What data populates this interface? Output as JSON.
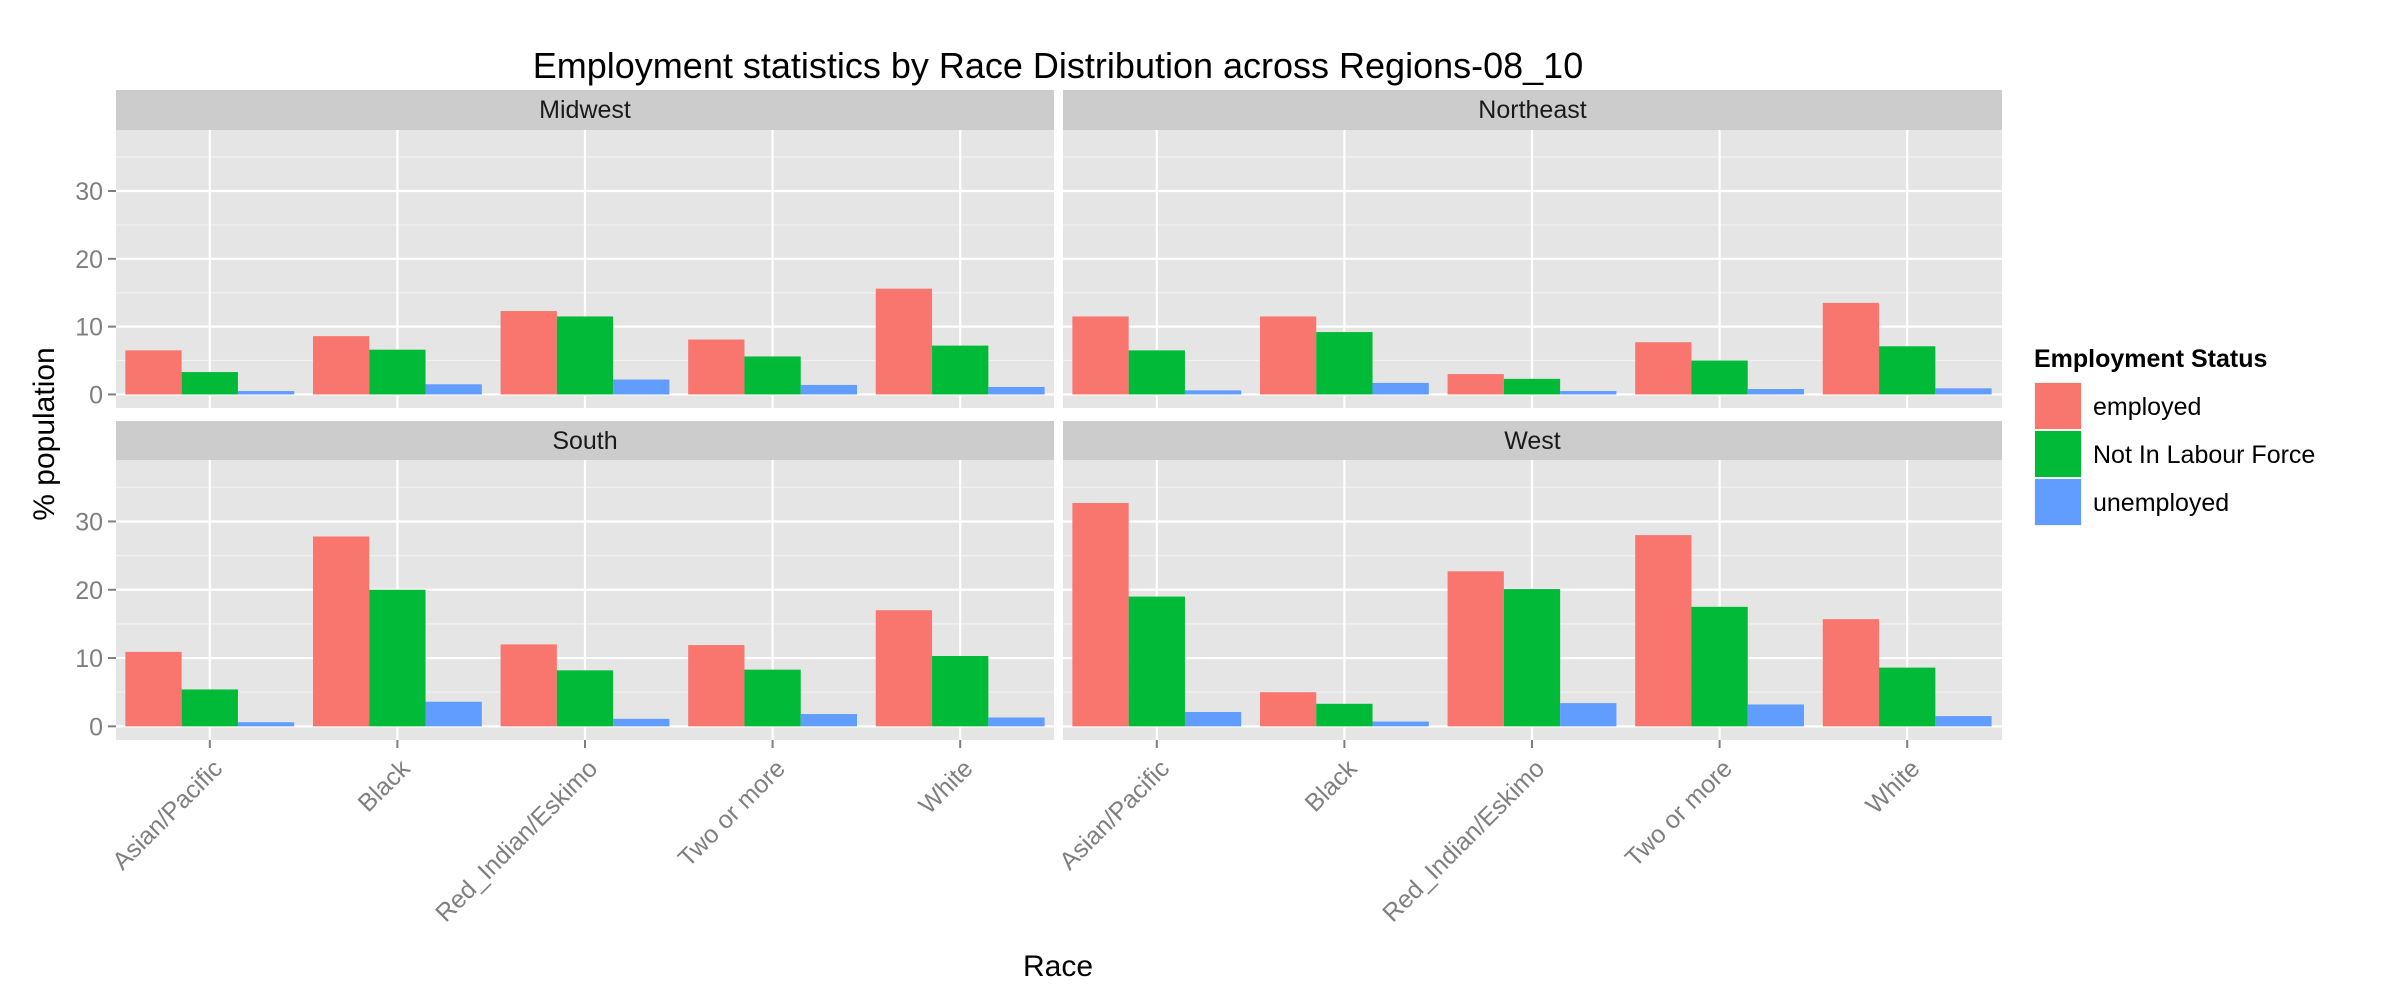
{
  "chart_data": {
    "type": "bar",
    "title": "Employment statistics by Race Distribution across Regions-08_10",
    "xlabel": "Race",
    "ylabel": "% population",
    "ylim": [
      -2,
      39
    ],
    "yticks": [
      0,
      10,
      20,
      30
    ],
    "grid": true,
    "legend_position": "right",
    "legend_title": "Employment Status",
    "categories": [
      "Asian/Pacific",
      "Black",
      "Red_Indian/Eskimo",
      "Two or more",
      "White"
    ],
    "series_meta": [
      {
        "name": "employed",
        "color": "#F8766D"
      },
      {
        "name": "Not In Labour Force",
        "color": "#00BA38"
      },
      {
        "name": "unemployed",
        "color": "#619CFF"
      }
    ],
    "facets": [
      {
        "title": "Midwest",
        "series": [
          {
            "name": "employed",
            "values": [
              6.5,
              8.6,
              12.3,
              8.1,
              15.6
            ]
          },
          {
            "name": "Not In Labour Force",
            "values": [
              3.3,
              6.6,
              11.5,
              5.6,
              7.2
            ]
          },
          {
            "name": "unemployed",
            "values": [
              0.5,
              1.5,
              2.2,
              1.4,
              1.1
            ]
          }
        ]
      },
      {
        "title": "Northeast",
        "series": [
          {
            "name": "employed",
            "values": [
              11.5,
              11.5,
              3.0,
              7.7,
              13.5
            ]
          },
          {
            "name": "Not In Labour Force",
            "values": [
              6.5,
              9.2,
              2.3,
              5.0,
              7.1
            ]
          },
          {
            "name": "unemployed",
            "values": [
              0.6,
              1.7,
              0.5,
              0.8,
              0.9
            ]
          }
        ]
      },
      {
        "title": "South",
        "series": [
          {
            "name": "employed",
            "values": [
              10.9,
              27.8,
              12.0,
              11.9,
              17.0
            ]
          },
          {
            "name": "Not In Labour Force",
            "values": [
              5.4,
              20.0,
              8.2,
              8.3,
              10.3
            ]
          },
          {
            "name": "unemployed",
            "values": [
              0.6,
              3.6,
              1.1,
              1.8,
              1.3
            ]
          }
        ]
      },
      {
        "title": "West",
        "series": [
          {
            "name": "employed",
            "values": [
              32.7,
              5.0,
              22.7,
              28.0,
              15.7
            ]
          },
          {
            "name": "Not In Labour Force",
            "values": [
              19.0,
              3.3,
              20.1,
              17.5,
              8.6
            ]
          },
          {
            "name": "unemployed",
            "values": [
              2.1,
              0.7,
              3.4,
              3.2,
              1.5
            ]
          }
        ]
      }
    ]
  }
}
